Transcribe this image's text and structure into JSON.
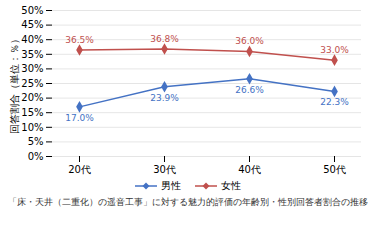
{
  "chart_data": {
    "type": "line",
    "title": "「床・天井（二重化）の遥音工事」に対する魅力的評価の年齢別・性別回答者割合の推移",
    "categories": [
      "20代",
      "30代",
      "40代",
      "50代"
    ],
    "series": [
      {
        "name": "男性",
        "color": "#4472c4",
        "values": [
          17.0,
          23.9,
          26.6,
          22.3
        ],
        "value_labels": [
          "17.0%",
          "23.9%",
          "26.6%",
          "22.3%"
        ]
      },
      {
        "name": "女性",
        "color": "#c0504d",
        "values": [
          36.5,
          36.8,
          36.0,
          33.0
        ],
        "value_labels": [
          "36.5%",
          "36.8%",
          "36.0%",
          "33.0%"
        ]
      }
    ],
    "ylabel": "回答割合（単位：％）",
    "ylim": [
      0,
      50
    ],
    "yticks": [
      {
        "value": 0,
        "label": "0%"
      },
      {
        "value": 5,
        "label": "5%"
      },
      {
        "value": 10,
        "label": "10%"
      },
      {
        "value": 15,
        "label": "15%"
      },
      {
        "value": 20,
        "label": "20%"
      },
      {
        "value": 25,
        "label": "25%"
      },
      {
        "value": 30,
        "label": "30%"
      },
      {
        "value": 35,
        "label": "35%"
      },
      {
        "value": 40,
        "label": "40%"
      },
      {
        "value": 45,
        "label": "45%"
      },
      {
        "value": 50,
        "label": "50%"
      }
    ],
    "grid": true,
    "legend": "bottom",
    "data_labels": true,
    "marker": "diamond"
  }
}
